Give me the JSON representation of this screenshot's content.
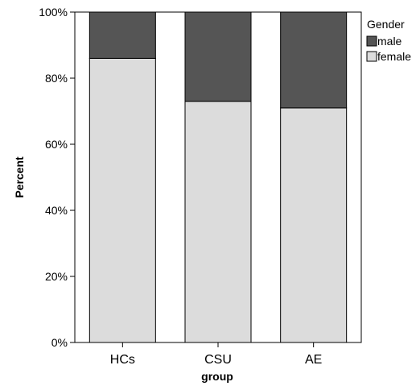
{
  "chart_data": {
    "type": "bar",
    "stacked": true,
    "categories": [
      "HCs",
      "CSU",
      "AE"
    ],
    "series": [
      {
        "name": "female",
        "values": [
          86,
          73,
          71
        ],
        "color": "#dcdcdc"
      },
      {
        "name": "male",
        "values": [
          14,
          27,
          29
        ],
        "color": "#555555"
      }
    ],
    "xlabel": "group",
    "ylabel": "Percent",
    "ylim": [
      0,
      100
    ],
    "yticks": [
      0,
      20,
      40,
      60,
      80,
      100
    ],
    "ytick_labels": [
      "0%",
      "20%",
      "40%",
      "60%",
      "80%",
      "100%"
    ],
    "legend": {
      "title": "Gender",
      "position": "top-right",
      "entries": [
        "male",
        "female"
      ]
    },
    "grid": false
  }
}
